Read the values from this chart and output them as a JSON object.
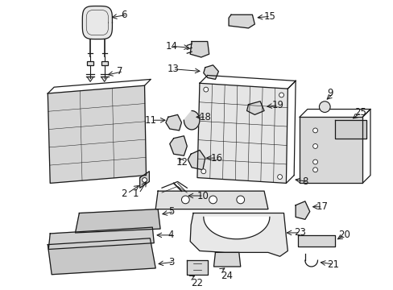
{
  "bg_color": "#ffffff",
  "line_color": "#1a1a1a",
  "fig_width": 4.89,
  "fig_height": 3.6,
  "dpi": 100,
  "label_fontsize": 8.5,
  "lw": 0.9
}
